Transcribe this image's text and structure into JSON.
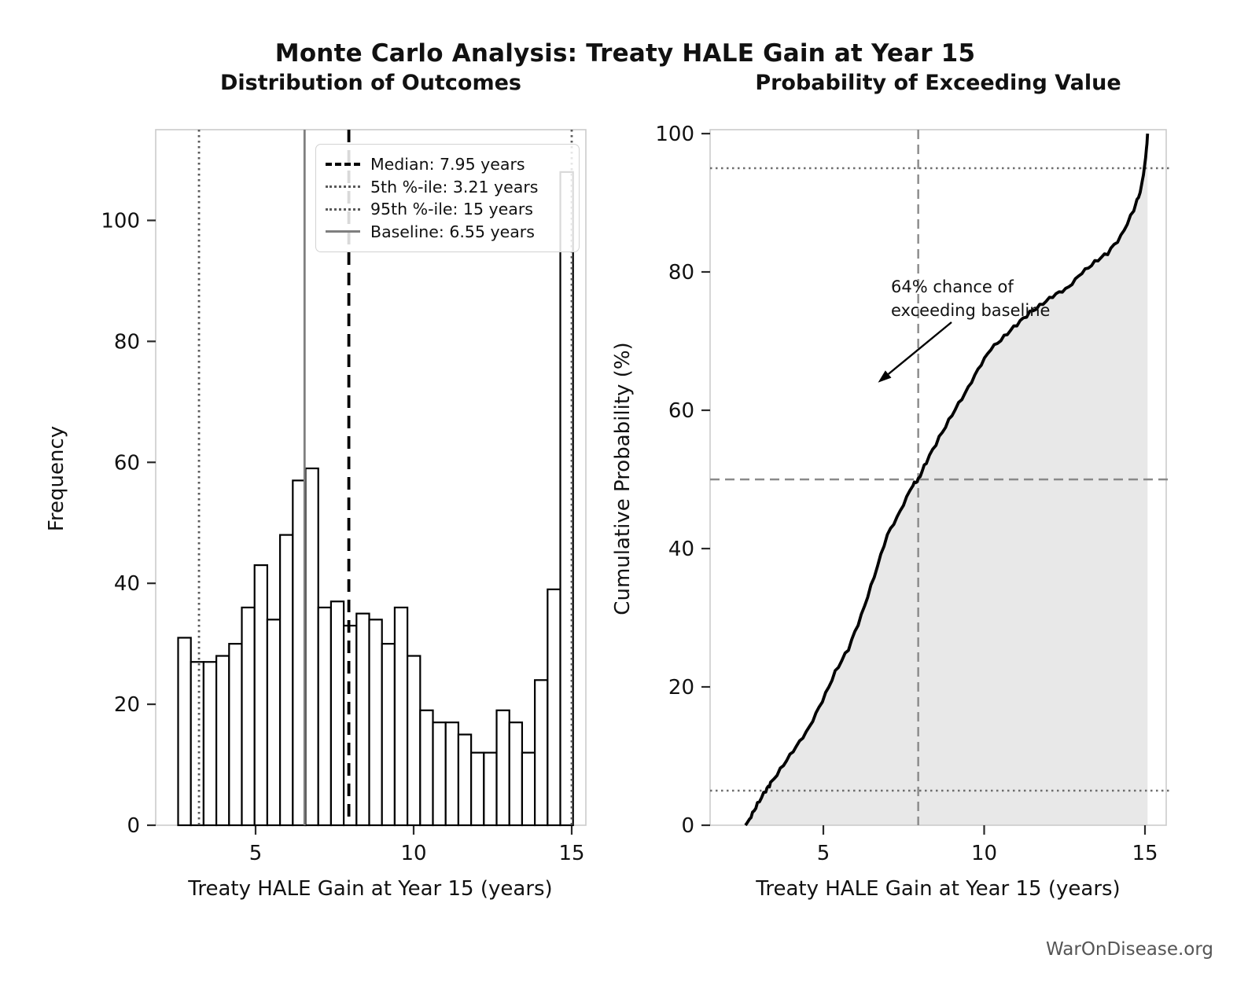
{
  "header": {
    "title": "Monte Carlo Analysis: Treaty HALE Gain at Year 15",
    "footer": "WarOnDisease.org"
  },
  "chart_data": [
    {
      "type": "bar",
      "title": "Distribution of Outcomes",
      "xlabel": "Treaty HALE Gain at Year 15 (years)",
      "ylabel": "Frequency",
      "bin_start": 2.55,
      "bin_width": 0.403,
      "values": [
        31,
        27,
        27,
        28,
        30,
        36,
        43,
        34,
        48,
        57,
        59,
        36,
        37,
        33,
        35,
        34,
        30,
        36,
        28,
        19,
        17,
        17,
        15,
        12,
        12,
        19,
        17,
        12,
        24,
        39,
        108
      ],
      "xticks": [
        5,
        10,
        15
      ],
      "yticks": [
        0,
        20,
        40,
        60,
        80,
        100
      ],
      "ylim": [
        0,
        115
      ],
      "bar_fill": "#ffffff",
      "bar_edge": "#000000",
      "ref_lines": [
        {
          "name": "p5",
          "value": 3.21,
          "style": "dotted",
          "color": "#595959"
        },
        {
          "name": "p95",
          "value": 15,
          "style": "dotted",
          "color": "#595959"
        },
        {
          "name": "baseline",
          "value": 6.55,
          "style": "solid",
          "color": "#7f7f7f"
        },
        {
          "name": "median",
          "value": 7.95,
          "style": "dashed",
          "color": "#000000"
        }
      ],
      "legend": [
        {
          "label": "Median: 7.95 years",
          "style": "dashed",
          "color": "#000000"
        },
        {
          "label": "5th %-ile: 3.21 years",
          "style": "dotted",
          "color": "#595959"
        },
        {
          "label": "95th %-ile: 15 years",
          "style": "dotted",
          "color": "#595959"
        },
        {
          "label": "Baseline: 6.55 years",
          "style": "solid",
          "color": "#7f7f7f"
        }
      ]
    },
    {
      "type": "line",
      "title": "Probability of Exceeding Value",
      "xlabel": "Treaty HALE Gain at Year 15 (years)",
      "ylabel": "Cumulative Probability (%)",
      "x": [
        2.58,
        2.75,
        2.95,
        3.21,
        3.36,
        3.76,
        4.16,
        4.57,
        4.97,
        5.37,
        5.78,
        6.18,
        6.58,
        6.99,
        7.39,
        7.79,
        7.95,
        8.2,
        8.6,
        9.0,
        9.41,
        9.81,
        10.21,
        10.62,
        11.02,
        11.42,
        11.83,
        12.23,
        12.63,
        13.04,
        13.44,
        13.84,
        14.25,
        14.65,
        14.85,
        14.95,
        15.02,
        15.06,
        15.08
      ],
      "y": [
        0,
        1.2,
        3.1,
        5,
        6,
        8.8,
        11.3,
        14.3,
        17.9,
        22.2,
        25.5,
        30.3,
        36,
        41.9,
        45.5,
        49.2,
        50,
        52.5,
        56,
        59.4,
        62.4,
        66,
        68.8,
        70.7,
        72.4,
        74.1,
        75.5,
        76.7,
        77.9,
        79.8,
        81.5,
        82.7,
        85.1,
        89,
        91.5,
        94,
        96.5,
        98.5,
        100
      ],
      "xticks": [
        5,
        10,
        15
      ],
      "yticks": [
        0,
        20,
        40,
        60,
        80,
        100
      ],
      "ylim": [
        0,
        100
      ],
      "line_color": "#000000",
      "fill_color": "#e8e8e8",
      "hlines": [
        {
          "y": 50,
          "style": "dashed",
          "color": "#8a8a8a"
        },
        {
          "y": 5,
          "style": "dotted",
          "color": "#6e6e6e"
        },
        {
          "y": 95,
          "style": "dotted",
          "color": "#6e6e6e"
        }
      ],
      "vlines": [
        {
          "x": 7.95,
          "style": "dashed",
          "color": "#8a8a8a"
        }
      ],
      "annotation": {
        "text": "64% chance of\nexceeding baseline",
        "arrow_tip_x": 6.7,
        "arrow_tip_y": 64
      }
    }
  ]
}
